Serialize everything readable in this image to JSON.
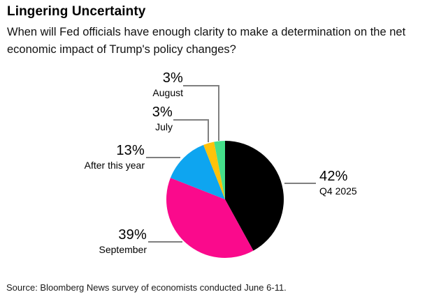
{
  "header": {
    "title": "Lingering Uncertainty",
    "subtitle": "When will Fed officials have enough clarity to make a determination on the net economic impact of Trump's policy changes?"
  },
  "footer": {
    "source": "Source: Bloomberg News survey of economists conducted June 6-11."
  },
  "chart_data": {
    "type": "pie",
    "title": "Lingering Uncertainty",
    "unit": "%",
    "direction": "clockwise",
    "start_angle_deg": 0,
    "legend_position": "none",
    "leader_line_color": "#7f7f7f",
    "categories": [
      "Q4 2025",
      "September",
      "After this year",
      "July",
      "August"
    ],
    "values": [
      42,
      39,
      13,
      3,
      3
    ],
    "slices": [
      {
        "label": "Q4 2025",
        "value": 42,
        "pct_label": "42%",
        "color": "#000000"
      },
      {
        "label": "September",
        "value": 39,
        "pct_label": "39%",
        "color": "#fa0a8c"
      },
      {
        "label": "After this year",
        "value": 13,
        "pct_label": "13%",
        "color": "#0ea5f0"
      },
      {
        "label": "July",
        "value": 3,
        "pct_label": "3%",
        "color": "#ffc20a"
      },
      {
        "label": "August",
        "value": 3,
        "pct_label": "3%",
        "color": "#44df8a"
      }
    ]
  }
}
